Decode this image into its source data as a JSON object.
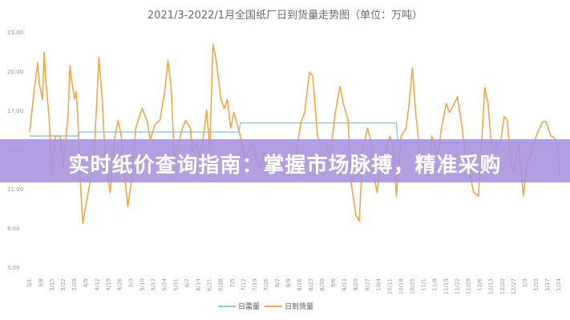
{
  "chart_data": {
    "type": "line",
    "title": "2021/3-2022/1月全国纸厂日到货量走势图（单位：万吨）",
    "xlabel": "",
    "ylabel": "",
    "ylim": [
      5,
      23
    ],
    "yticks": [
      "5.00",
      "8.00",
      "11.00",
      "14.00",
      "17.00",
      "20.00",
      "23.00"
    ],
    "xticks": [
      "3/1",
      "3/8",
      "3/15",
      "3/22",
      "3/29",
      "4/5",
      "4/12",
      "4/19",
      "4/26",
      "5/3",
      "5/10",
      "5/17",
      "5/24",
      "5/31",
      "6/7",
      "6/14",
      "6/21",
      "6/28",
      "7/5",
      "7/12",
      "7/19",
      "7/26",
      "8/2",
      "8/9",
      "8/16",
      "8/23",
      "8/30",
      "9/6",
      "9/13",
      "9/20",
      "9/27",
      "10/4",
      "10/11",
      "10/18",
      "10/25",
      "11/1",
      "11/8",
      "11/15",
      "11/22",
      "11/29",
      "12/6",
      "12/13",
      "12/20",
      "12/27",
      "1/3",
      "1/10",
      "1/17",
      "1/24"
    ],
    "grid": false,
    "legend_position": "bottom",
    "series": [
      {
        "name": "日需量",
        "color": "#8cc8dc",
        "points": [
          [
            "3/1",
            15.1
          ],
          [
            "3/31",
            15.1
          ],
          [
            "4/1",
            15.4
          ],
          [
            "7/9",
            15.4
          ],
          [
            "7/10",
            16.1
          ],
          [
            "10/15",
            16.1
          ],
          [
            "10/16",
            14.6
          ],
          [
            "1/5",
            14.6
          ],
          [
            "1/6",
            14.5
          ],
          [
            "1/25",
            14.5
          ]
        ]
      },
      {
        "name": "日到货量",
        "color": "#f0a845",
        "points": [
          [
            "3/1",
            15.4
          ],
          [
            "3/4",
            18.8
          ],
          [
            "3/6",
            20.7
          ],
          [
            "3/7",
            19.1
          ],
          [
            "3/9",
            17.9
          ],
          [
            "3/10",
            21.5
          ],
          [
            "3/11",
            19.4
          ],
          [
            "3/13",
            16.6
          ],
          [
            "3/15",
            12.0
          ],
          [
            "3/17",
            15.1
          ],
          [
            "3/20",
            15.1
          ],
          [
            "3/22",
            12.7
          ],
          [
            "3/25",
            16.9
          ],
          [
            "3/26",
            20.5
          ],
          [
            "3/27",
            19.4
          ],
          [
            "3/29",
            17.9
          ],
          [
            "3/30",
            18.5
          ],
          [
            "3/31",
            16.4
          ],
          [
            "4/1",
            12.7
          ],
          [
            "4/3",
            8.4
          ],
          [
            "4/6",
            10.5
          ],
          [
            "4/10",
            13.3
          ],
          [
            "4/13",
            21.1
          ],
          [
            "4/15",
            18.2
          ],
          [
            "4/17",
            13.3
          ],
          [
            "4/20",
            10.8
          ],
          [
            "4/23",
            15.1
          ],
          [
            "4/25",
            16.3
          ],
          [
            "4/27",
            15.1
          ],
          [
            "4/29",
            12.0
          ],
          [
            "5/1",
            9.7
          ],
          [
            "5/3",
            11.4
          ],
          [
            "5/6",
            15.7
          ],
          [
            "5/9",
            16.9
          ],
          [
            "5/10",
            17.2
          ],
          [
            "5/13",
            16.3
          ],
          [
            "5/15",
            14.8
          ],
          [
            "5/18",
            16.0
          ],
          [
            "5/21",
            16.3
          ],
          [
            "5/24",
            18.5
          ],
          [
            "5/26",
            20.9
          ],
          [
            "5/28",
            18.8
          ],
          [
            "5/30",
            13.3
          ],
          [
            "6/1",
            14.2
          ],
          [
            "6/4",
            15.7
          ],
          [
            "6/6",
            16.3
          ],
          [
            "6/9",
            15.7
          ],
          [
            "6/10",
            13.9
          ],
          [
            "6/13",
            14.5
          ],
          [
            "6/15",
            13.3
          ],
          [
            "6/18",
            16.0
          ],
          [
            "6/19",
            17.1
          ],
          [
            "6/21",
            14.2
          ],
          [
            "6/23",
            22.1
          ],
          [
            "6/25",
            20.9
          ],
          [
            "6/28",
            17.9
          ],
          [
            "6/30",
            17.2
          ],
          [
            "7/2",
            17.9
          ],
          [
            "7/4",
            15.7
          ],
          [
            "7/6",
            16.9
          ],
          [
            "7/8",
            16.0
          ],
          [
            "7/10",
            15.1
          ],
          [
            "7/13",
            13.3
          ],
          [
            "7/15",
            13.9
          ],
          [
            "7/18",
            14.5
          ],
          [
            "7/20",
            13.3
          ],
          [
            "7/23",
            12.7
          ],
          [
            "7/25",
            13.9
          ],
          [
            "7/28",
            12.7
          ],
          [
            "7/30",
            13.3
          ],
          [
            "8/2",
            12.7
          ],
          [
            "8/4",
            13.3
          ],
          [
            "8/8",
            12.0
          ],
          [
            "8/12",
            12.7
          ],
          [
            "8/17",
            16.3
          ],
          [
            "8/19",
            16.9
          ],
          [
            "8/22",
            20.0
          ],
          [
            "8/24",
            19.7
          ],
          [
            "8/27",
            15.1
          ],
          [
            "8/29",
            14.5
          ],
          [
            "9/1",
            14.5
          ],
          [
            "9/4",
            13.6
          ],
          [
            "9/7",
            16.9
          ],
          [
            "9/10",
            18.9
          ],
          [
            "9/12",
            17.6
          ],
          [
            "9/15",
            16.3
          ],
          [
            "9/17",
            11.4
          ],
          [
            "9/20",
            9.0
          ],
          [
            "9/22",
            8.6
          ],
          [
            "9/24",
            13.9
          ],
          [
            "9/27",
            15.7
          ],
          [
            "9/29",
            14.8
          ],
          [
            "10/2",
            11.4
          ],
          [
            "10/3",
            10.8
          ],
          [
            "10/6",
            13.3
          ],
          [
            "10/8",
            13.6
          ],
          [
            "10/11",
            15.1
          ],
          [
            "10/13",
            14.2
          ],
          [
            "10/15",
            10.5
          ],
          [
            "10/18",
            15.1
          ],
          [
            "10/21",
            15.7
          ],
          [
            "10/23",
            17.6
          ],
          [
            "10/25",
            20.3
          ],
          [
            "10/27",
            16.9
          ],
          [
            "10/30",
            13.3
          ],
          [
            "11/1",
            12.7
          ],
          [
            "11/4",
            12.3
          ],
          [
            "11/6",
            15.1
          ],
          [
            "11/7",
            14.8
          ],
          [
            "11/10",
            13.6
          ],
          [
            "11/12",
            15.7
          ],
          [
            "11/15",
            17.6
          ],
          [
            "11/17",
            16.9
          ],
          [
            "11/20",
            17.6
          ],
          [
            "11/22",
            18.1
          ],
          [
            "11/25",
            15.7
          ],
          [
            "11/27",
            13.3
          ],
          [
            "11/30",
            12.0
          ],
          [
            "12/2",
            10.8
          ],
          [
            "12/5",
            10.5
          ],
          [
            "12/7",
            14.5
          ],
          [
            "12/9",
            18.8
          ],
          [
            "12/11",
            17.6
          ],
          [
            "12/13",
            14.5
          ],
          [
            "12/16",
            14.2
          ],
          [
            "12/19",
            14.8
          ],
          [
            "12/21",
            16.6
          ],
          [
            "12/23",
            16.3
          ],
          [
            "12/25",
            13.3
          ],
          [
            "12/27",
            12.3
          ],
          [
            "12/30",
            14.5
          ],
          [
            "1/2",
            10.5
          ],
          [
            "1/4",
            12.7
          ],
          [
            "1/7",
            13.9
          ],
          [
            "1/10",
            15.1
          ],
          [
            "1/14",
            16.2
          ],
          [
            "1/16",
            16.2
          ],
          [
            "1/19",
            15.1
          ],
          [
            "1/21",
            15.0
          ],
          [
            "1/23",
            14.5
          ],
          [
            "1/25",
            11.8
          ]
        ]
      }
    ]
  },
  "banner": {
    "text": "实时纸价查询指南：掌握市场脉搏，精准采购",
    "color": "#a891de"
  }
}
